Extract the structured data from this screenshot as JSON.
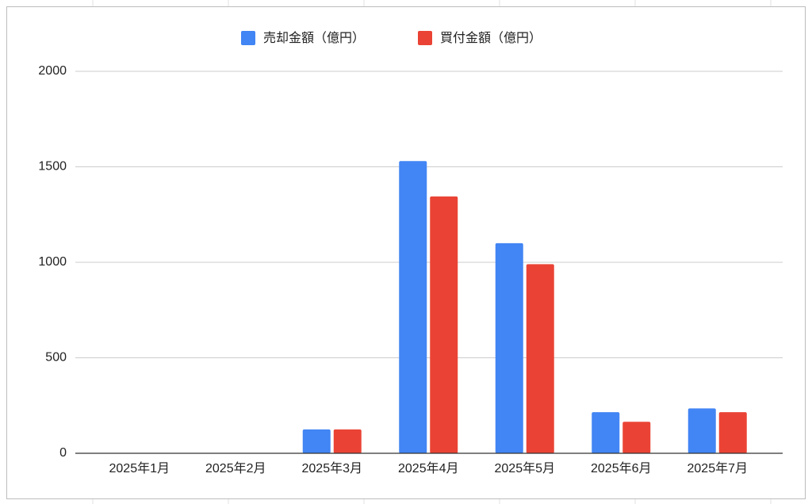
{
  "chart_data": {
    "type": "bar",
    "categories": [
      "2025年1月",
      "2025年2月",
      "2025年3月",
      "2025年4月",
      "2025年5月",
      "2025年6月",
      "2025年7月"
    ],
    "series": [
      {
        "name": "売却金額（億円）",
        "color": "#4285f4",
        "values": [
          0,
          0,
          125,
          1530,
          1100,
          215,
          235
        ]
      },
      {
        "name": "買付金額（億円）",
        "color": "#ea4335",
        "values": [
          0,
          0,
          125,
          1345,
          990,
          165,
          215
        ]
      }
    ],
    "ylim": [
      0,
      2000
    ],
    "yticks": [
      0,
      500,
      1000,
      1500,
      2000
    ],
    "grid": true,
    "legend": "top"
  }
}
